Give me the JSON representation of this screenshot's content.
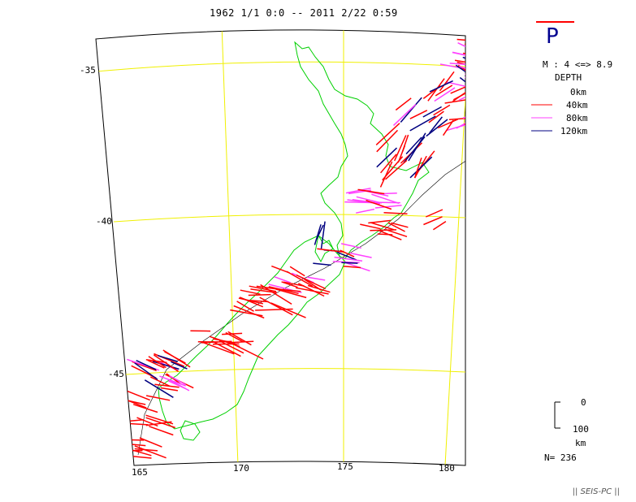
{
  "title": "1962 1/1 0:0 -- 2011 2/22 0:59",
  "phase": "P",
  "colors": {
    "background": "#ffffff",
    "grid": "#f0f000",
    "coast": "#00d000",
    "frame": "#000000",
    "depth0": "#ff0000",
    "depth40": "#ff0000",
    "depth80": "#ff40ff",
    "depth120": "#000080",
    "phase_mark": "#ff0000",
    "phase_text": "#000090"
  },
  "legend": {
    "magnitude": "M : 4 <=> 8.9",
    "depth_label": "DEPTH",
    "depth_items": [
      {
        "label": "0km",
        "color": "#ff0000"
      },
      {
        "label": "40km",
        "color": "#ff0000"
      },
      {
        "label": "80km",
        "color": "#ff40ff"
      },
      {
        "label": "120km",
        "color": "#000080"
      }
    ],
    "scale_top": "0",
    "scale_bottom": "100",
    "scale_unit": "km",
    "count": "N= 236"
  },
  "axes": {
    "lat_labels": [
      "-35",
      "-40",
      "-45"
    ],
    "lon_labels": [
      "165",
      "170",
      "175",
      "180"
    ]
  },
  "footer": "|| SEIS-PC ||"
}
